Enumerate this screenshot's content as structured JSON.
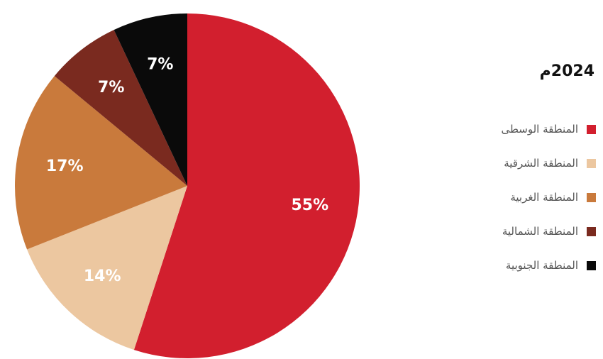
{
  "chart_data": {
    "type": "pie",
    "title": "2024م",
    "categories": [
      "المنطقة الوسطى",
      "المنطقة الشرقية",
      "المنطقة الغربية",
      "المنطقة الشمالية",
      "المنطقة الجنوبية"
    ],
    "values": [
      55,
      14,
      17,
      7,
      7
    ],
    "value_labels": [
      "55%",
      "14%",
      "17%",
      "7%",
      "7%"
    ],
    "colors": [
      "#d21f2e",
      "#ecc7a0",
      "#c97a3c",
      "#7a2a1f",
      "#0a0a0a"
    ],
    "legend_position": "right",
    "start_angle": "top",
    "direction": "clockwise"
  }
}
